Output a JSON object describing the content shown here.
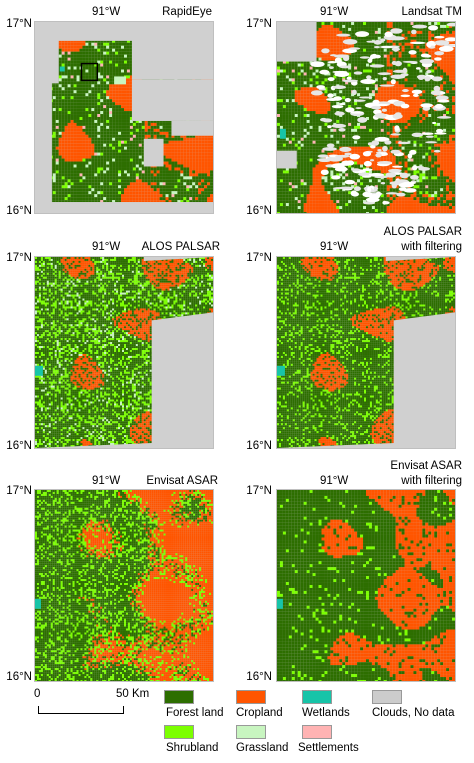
{
  "panels": [
    {
      "title": "RapidEye",
      "title2": "",
      "lon": "91°W",
      "lat_top": "17°N",
      "lat_bottom": "16°N"
    },
    {
      "title": "Landsat TM",
      "title2": "",
      "lon": "91°W",
      "lat_top": "17°N",
      "lat_bottom": "16°N"
    },
    {
      "title": "ALOS PALSAR",
      "title2": "",
      "lon": "91°W",
      "lat_top": "17°N",
      "lat_bottom": "16°N"
    },
    {
      "title": "ALOS PALSAR",
      "title2": "with filtering",
      "lon": "91°W",
      "lat_top": "17°N",
      "lat_bottom": "16°N"
    },
    {
      "title": "Envisat ASAR",
      "title2": "",
      "lon": "91°W",
      "lat_top": "17°N",
      "lat_bottom": "16°N"
    },
    {
      "title": "Envisat ASAR",
      "title2": "with filtering",
      "lon": "91°W",
      "lat_top": "17°N",
      "lat_bottom": "16°N"
    }
  ],
  "scale": {
    "start": "0",
    "end": "50 Km"
  },
  "legend": [
    {
      "label": "Forest land",
      "color": "#2d6e00"
    },
    {
      "label": "Cropland",
      "color": "#ff5500"
    },
    {
      "label": "Wetlands",
      "color": "#17c4a8"
    },
    {
      "label": "Clouds, No data",
      "color": "#cccccc"
    },
    {
      "label": "Shrubland",
      "color": "#7cff00"
    },
    {
      "label": "Grassland",
      "color": "#c8f5c0"
    },
    {
      "label": "Settlements",
      "color": "#ffb3b3"
    }
  ],
  "colors": {
    "forest": "#2d6e00",
    "crop": "#ff5500",
    "wetland": "#17c4a8",
    "nodata": "#d0d0d0",
    "shrub": "#7cff00",
    "grass": "#c8f5c0",
    "settle": "#ffb3b3",
    "cloud": "#e6e6e6"
  }
}
